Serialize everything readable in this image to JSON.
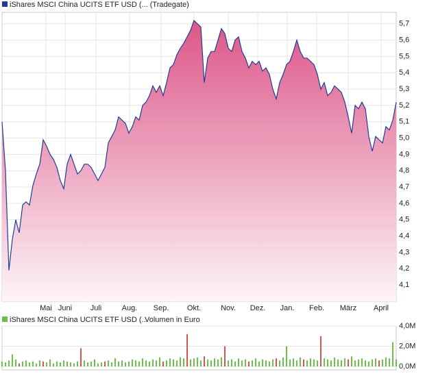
{
  "chart_data": [
    {
      "type": "area",
      "legend": "iShares MSCI China UCITS ETF USD (... (Tradegate)",
      "line_color": "#1f3c96",
      "color_top": "#dc5285",
      "color_bottom": "#fdf4f8",
      "x": [
        0,
        1,
        2,
        3,
        4,
        5,
        6,
        7,
        8,
        9,
        10,
        11,
        12,
        13,
        14,
        15,
        16,
        17,
        18,
        19,
        20,
        21,
        22,
        23,
        24,
        25,
        26,
        27,
        28,
        29,
        30,
        31,
        32,
        33,
        34,
        35,
        36,
        37,
        38,
        39,
        40,
        41,
        42,
        43,
        44,
        45,
        46,
        47,
        48,
        49,
        50,
        51,
        52,
        53,
        54,
        55,
        56,
        57,
        58,
        59,
        60,
        61,
        62,
        63,
        64,
        65,
        66,
        67,
        68,
        69,
        70,
        71,
        72,
        73,
        74,
        75,
        76,
        77,
        78,
        79,
        80,
        81,
        82,
        83,
        84,
        85,
        86,
        87,
        88,
        89,
        90,
        91,
        92,
        93,
        94,
        95,
        96,
        97,
        98,
        99,
        100,
        101,
        102,
        103,
        104,
        105,
        106,
        107,
        108,
        109,
        110,
        111,
        112,
        113,
        114,
        115
      ],
      "values": [
        5.1,
        4.8,
        4.19,
        4.38,
        4.5,
        4.42,
        4.59,
        4.61,
        4.59,
        4.71,
        4.78,
        4.84,
        4.99,
        4.95,
        4.9,
        4.87,
        4.82,
        4.74,
        4.69,
        4.84,
        4.9,
        4.84,
        4.78,
        4.8,
        4.84,
        4.84,
        4.82,
        4.78,
        4.74,
        4.78,
        4.82,
        4.97,
        5.01,
        5.05,
        5.13,
        5.11,
        5.09,
        5.03,
        5.07,
        5.13,
        5.11,
        5.2,
        5.22,
        5.26,
        5.32,
        5.28,
        5.32,
        5.26,
        5.34,
        5.43,
        5.45,
        5.51,
        5.55,
        5.58,
        5.62,
        5.66,
        5.72,
        5.7,
        5.68,
        5.34,
        5.49,
        5.53,
        5.53,
        5.6,
        5.67,
        5.64,
        5.55,
        5.53,
        5.6,
        5.62,
        5.53,
        5.49,
        5.43,
        5.47,
        5.45,
        5.47,
        5.41,
        5.43,
        5.39,
        5.3,
        5.24,
        5.34,
        5.39,
        5.45,
        5.47,
        5.53,
        5.6,
        5.53,
        5.49,
        5.49,
        5.47,
        5.45,
        5.39,
        5.3,
        5.34,
        5.26,
        5.28,
        5.32,
        5.3,
        5.28,
        5.22,
        5.13,
        5.03,
        5.2,
        5.18,
        5.22,
        5.18,
        5.01,
        4.92,
        5.01,
        4.99,
        4.97,
        5.07,
        5.05,
        5.11,
        5.22
      ],
      "xlim": [
        0,
        115
      ],
      "xticks": [
        {
          "value": 12.8,
          "label": "Mai"
        },
        {
          "value": 18.4,
          "label": "Juni"
        },
        {
          "value": 27.4,
          "label": "Juli"
        },
        {
          "value": 37.2,
          "label": "Aug."
        },
        {
          "value": 46.4,
          "label": "Sep."
        },
        {
          "value": 56,
          "label": "Okt."
        },
        {
          "value": 66,
          "label": "Nov."
        },
        {
          "value": 74.6,
          "label": "Dez."
        },
        {
          "value": 83.2,
          "label": "Jan."
        },
        {
          "value": 91.8,
          "label": "Feb."
        },
        {
          "value": 101,
          "label": "März"
        },
        {
          "value": 110.6,
          "label": "April"
        }
      ],
      "ylim": [
        4.0,
        5.77
      ],
      "yticks": [
        {
          "value": 4.1,
          "label": "4,1"
        },
        {
          "value": 4.2,
          "label": "4,2"
        },
        {
          "value": 4.3,
          "label": "4,3"
        },
        {
          "value": 4.4,
          "label": "4,4"
        },
        {
          "value": 4.5,
          "label": "4,5"
        },
        {
          "value": 4.6,
          "label": "4,6"
        },
        {
          "value": 4.7,
          "label": "4,7"
        },
        {
          "value": 4.8,
          "label": "4,8"
        },
        {
          "value": 4.9,
          "label": "4,9"
        },
        {
          "value": 5.0,
          "label": "5,0"
        },
        {
          "value": 5.1,
          "label": "5,1"
        },
        {
          "value": 5.2,
          "label": "5,2"
        },
        {
          "value": 5.3,
          "label": "5,3"
        },
        {
          "value": 5.4,
          "label": "5,4"
        },
        {
          "value": 5.5,
          "label": "5,5"
        },
        {
          "value": 5.6,
          "label": "5,6"
        },
        {
          "value": 5.7,
          "label": "5,7"
        }
      ],
      "grid": true
    },
    {
      "type": "bar",
      "legend": "iShares MSCI China UCITS ETF USD (...",
      "legend_unit": "Volumen in Euro",
      "legend_color": "#6cc04a",
      "x": [
        0,
        1,
        2,
        3,
        4,
        5,
        6,
        7,
        8,
        9,
        10,
        11,
        12,
        13,
        14,
        15,
        16,
        17,
        18,
        19,
        20,
        21,
        22,
        23,
        24,
        25,
        26,
        27,
        28,
        29,
        30,
        31,
        32,
        33,
        34,
        35,
        36,
        37,
        38,
        39,
        40,
        41,
        42,
        43,
        44,
        45,
        46,
        47,
        48,
        49,
        50,
        51,
        52,
        53,
        54,
        55,
        56,
        57,
        58,
        59,
        60,
        61,
        62,
        63,
        64,
        65,
        66,
        67,
        68,
        69,
        70,
        71,
        72,
        73,
        74,
        75,
        76,
        77,
        78,
        79,
        80,
        81,
        82,
        83,
        84,
        85,
        86,
        87,
        88,
        89,
        90,
        91,
        92,
        93,
        94,
        95,
        96,
        97,
        98,
        99,
        100,
        101,
        102,
        103,
        104,
        105,
        106,
        107,
        108,
        109,
        110,
        111,
        112,
        113,
        114,
        115
      ],
      "values": [
        0.5,
        0.4,
        0.6,
        1.2,
        0.7,
        0.3,
        0.5,
        0.6,
        0.4,
        0.5,
        0.3,
        0.6,
        0.5,
        0.4,
        0.7,
        0.3,
        0.5,
        0.4,
        0.6,
        0.5,
        0.4,
        0.3,
        0.5,
        1.8,
        0.6,
        0.4,
        0.5,
        0.7,
        0.3,
        0.4,
        0.5,
        0.6,
        0.4,
        0.8,
        0.5,
        0.6,
        0.4,
        0.5,
        0.7,
        0.6,
        0.5,
        0.8,
        0.6,
        0.5,
        0.7,
        0.6,
        0.9,
        0.5,
        0.6,
        0.8,
        0.7,
        0.6,
        0.9,
        0.8,
        3.2,
        0.7,
        0.8,
        0.9,
        0.6,
        1.0,
        0.7,
        0.6,
        0.8,
        0.7,
        0.9,
        2.0,
        0.6,
        0.7,
        0.5,
        0.8,
        0.6,
        0.7,
        0.5,
        0.6,
        0.8,
        0.5,
        0.7,
        0.6,
        0.5,
        0.7,
        0.8,
        0.6,
        0.9,
        2.0,
        0.7,
        0.8,
        0.6,
        0.9,
        0.7,
        0.6,
        0.8,
        0.7,
        0.6,
        3.0,
        0.8,
        0.7,
        0.6,
        0.9,
        0.7,
        0.6,
        0.8,
        0.7,
        1.0,
        0.6,
        0.7,
        0.8,
        0.6,
        0.5,
        0.7,
        0.8,
        0.6,
        0.7,
        0.9,
        0.8,
        2.4,
        0.7
      ],
      "colors": [
        "#6cc04a",
        "#6cc04a",
        "#6cc04a",
        "#6cc04a",
        "#6cc04a",
        "#d9534f",
        "#6cc04a",
        "#6cc04a",
        "#6cc04a",
        "#6cc04a",
        "#6cc04a",
        "#6cc04a",
        "#d9534f",
        "#6cc04a",
        "#6cc04a",
        "#6cc04a",
        "#6cc04a",
        "#6cc04a",
        "#6cc04a",
        "#6cc04a",
        "#6cc04a",
        "#6cc04a",
        "#6cc04a",
        "#d9534f",
        "#6cc04a",
        "#6cc04a",
        "#6cc04a",
        "#6cc04a",
        "#6cc04a",
        "#6cc04a",
        "#d9534f",
        "#6cc04a",
        "#6cc04a",
        "#6cc04a",
        "#6cc04a",
        "#6cc04a",
        "#6cc04a",
        "#6cc04a",
        "#6cc04a",
        "#6cc04a",
        "#6cc04a",
        "#6cc04a",
        "#6cc04a",
        "#6cc04a",
        "#6cc04a",
        "#6cc04a",
        "#6cc04a",
        "#d9534f",
        "#6cc04a",
        "#6cc04a",
        "#6cc04a",
        "#6cc04a",
        "#6cc04a",
        "#6cc04a",
        "#d9534f",
        "#6cc04a",
        "#6cc04a",
        "#6cc04a",
        "#6cc04a",
        "#d9534f",
        "#6cc04a",
        "#6cc04a",
        "#6cc04a",
        "#6cc04a",
        "#6cc04a",
        "#d9534f",
        "#6cc04a",
        "#6cc04a",
        "#6cc04a",
        "#6cc04a",
        "#6cc04a",
        "#6cc04a",
        "#d9534f",
        "#6cc04a",
        "#6cc04a",
        "#6cc04a",
        "#6cc04a",
        "#6cc04a",
        "#6cc04a",
        "#6cc04a",
        "#d9534f",
        "#6cc04a",
        "#6cc04a",
        "#6cc04a",
        "#6cc04a",
        "#6cc04a",
        "#6cc04a",
        "#6cc04a",
        "#d9534f",
        "#6cc04a",
        "#6cc04a",
        "#6cc04a",
        "#6cc04a",
        "#d9534f",
        "#6cc04a",
        "#6cc04a",
        "#6cc04a",
        "#6cc04a",
        "#6cc04a",
        "#6cc04a",
        "#6cc04a",
        "#d9534f",
        "#6cc04a",
        "#6cc04a",
        "#6cc04a",
        "#6cc04a",
        "#6cc04a",
        "#6cc04a",
        "#6cc04a",
        "#6cc04a",
        "#d9534f",
        "#6cc04a",
        "#6cc04a",
        "#6cc04a",
        "#6cc04a",
        "#6cc04a"
      ],
      "xlim": [
        0,
        115
      ],
      "ylim": [
        0,
        4.0
      ],
      "yticks": [
        {
          "value": 0,
          "label": "0,0M"
        },
        {
          "value": 2.0,
          "label": "2,0M"
        },
        {
          "value": 4.0,
          "label": "4,0M"
        }
      ],
      "grid": true
    }
  ]
}
